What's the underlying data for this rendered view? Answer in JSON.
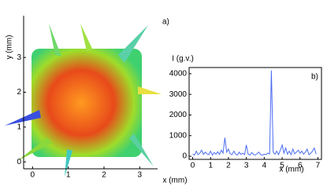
{
  "chart_data": [
    {
      "type": "image",
      "label": "a)",
      "xlabel": "x (mm)",
      "ylabel": "y (mm)",
      "xlim": [
        -0.25,
        3.5
      ],
      "ylim": [
        -0.2,
        4.2
      ],
      "xticks": [
        0,
        1,
        2,
        3
      ],
      "yticks": [
        0,
        1,
        2,
        3
      ]
    },
    {
      "type": "line",
      "label": "b)",
      "xlabel": "x (mm)",
      "ylabel": "I (g.v.)",
      "color": "#4a6cf0",
      "xlim": [
        -0.2,
        7.2
      ],
      "ylim": [
        -150,
        4300
      ],
      "xticks": [
        0,
        1,
        2,
        3,
        4,
        5,
        6,
        7
      ],
      "yticks": [
        0,
        1000,
        2000,
        3000,
        4000
      ],
      "x": [
        0.0,
        0.1,
        0.2,
        0.3,
        0.4,
        0.5,
        0.6,
        0.7,
        0.8,
        0.9,
        1.0,
        1.1,
        1.2,
        1.3,
        1.4,
        1.5,
        1.6,
        1.7,
        1.8,
        1.9,
        2.0,
        2.1,
        2.2,
        2.3,
        2.4,
        2.5,
        2.6,
        2.7,
        2.8,
        2.9,
        3.0,
        3.1,
        3.2,
        3.3,
        3.4,
        3.5,
        3.6,
        3.7,
        3.8,
        3.9,
        4.0,
        4.1,
        4.2,
        4.3,
        4.4,
        4.5,
        4.6,
        4.7,
        4.8,
        4.9,
        5.0,
        5.1,
        5.2,
        5.3,
        5.4,
        5.5,
        5.6,
        5.7,
        5.8,
        5.9,
        6.0,
        6.1,
        6.2,
        6.3,
        6.4,
        6.5,
        6.6,
        6.7,
        6.8,
        6.9
      ],
      "values": [
        100,
        60,
        250,
        80,
        150,
        300,
        90,
        200,
        120,
        80,
        250,
        60,
        180,
        100,
        220,
        90,
        300,
        150,
        900,
        200,
        350,
        120,
        80,
        250,
        100,
        60,
        200,
        90,
        150,
        80,
        550,
        100,
        60,
        180,
        90,
        60,
        120,
        200,
        80,
        60,
        100,
        80,
        150,
        120,
        4150,
        200,
        100,
        250,
        80,
        300,
        550,
        150,
        400,
        100,
        250,
        80,
        350,
        120,
        200,
        300,
        150,
        250,
        100,
        200,
        350,
        80,
        150,
        250,
        400,
        100
      ]
    }
  ]
}
